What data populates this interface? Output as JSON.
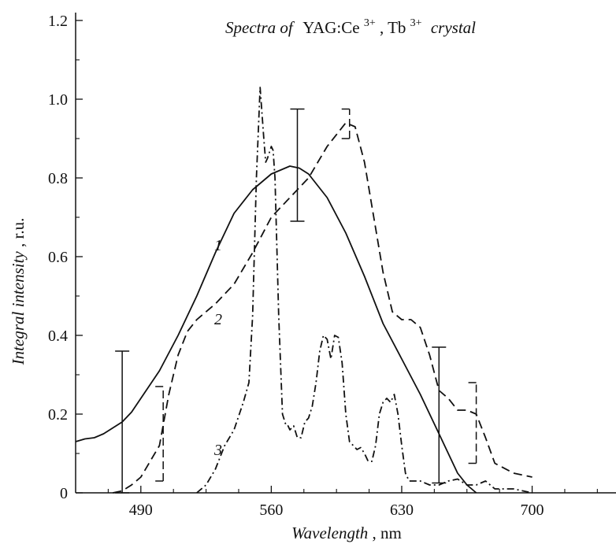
{
  "chart_data": {
    "type": "line",
    "title": {
      "italic_part": "Spectra of",
      "formula_parts": [
        {
          "text": "YAG:Ce",
          "sup": "3+"
        },
        {
          "text": ", Tb",
          "sup": "3+"
        }
      ],
      "suffix": "crystal"
    },
    "xlabel": {
      "main": "Wavelength",
      "unit": ", nm"
    },
    "ylabel": {
      "main": "Integral intensity",
      "unit": ", r.u."
    },
    "xlim": [
      455,
      745
    ],
    "ylim": [
      0,
      1.22
    ],
    "xticks": [
      490,
      560,
      630,
      700
    ],
    "xtick_labels": [
      "490",
      "560",
      "630",
      "700"
    ],
    "yticks": [
      0,
      0.2,
      0.4,
      0.6,
      0.8,
      1.0,
      1.2
    ],
    "ytick_labels": [
      "0",
      "0.2",
      "0.4",
      "0.6",
      "0.8",
      "1.0",
      "1.2"
    ],
    "minor_xticks": [
      472.5,
      507.5,
      525,
      542.5,
      577.5,
      595,
      612.5,
      647.5,
      665,
      682.5,
      717.5,
      735
    ],
    "grid": false,
    "series": [
      {
        "label": "1",
        "line_style": "solid",
        "color": "#111111",
        "x": [
          455,
          460,
          465,
          470,
          475,
          480,
          485,
          490,
          500,
          510,
          520,
          530,
          540,
          550,
          560,
          565,
          570,
          575,
          580,
          590,
          600,
          610,
          620,
          630,
          640,
          650,
          660,
          665,
          670
        ],
        "y": [
          0.13,
          0.137,
          0.14,
          0.15,
          0.165,
          0.18,
          0.205,
          0.24,
          0.31,
          0.4,
          0.5,
          0.61,
          0.71,
          0.77,
          0.81,
          0.82,
          0.83,
          0.825,
          0.81,
          0.75,
          0.66,
          0.55,
          0.43,
          0.34,
          0.25,
          0.15,
          0.05,
          0.02,
          0.0
        ],
        "error_bars": [
          {
            "x": 480,
            "y_low": 0.0,
            "y_high": 0.36
          },
          {
            "x": 574,
            "y_low": 0.69,
            "y_high": 0.975
          },
          {
            "x": 650,
            "y_low": 0.025,
            "y_high": 0.37
          }
        ]
      },
      {
        "label": "2",
        "line_style": "dashed",
        "color": "#111111",
        "x": [
          475,
          480,
          485,
          490,
          495,
          500,
          505,
          510,
          515,
          520,
          530,
          540,
          550,
          560,
          570,
          580,
          590,
          600,
          605,
          610,
          615,
          620,
          625,
          630,
          635,
          640,
          645,
          650,
          655,
          660,
          665,
          670,
          675,
          680,
          690,
          700
        ],
        "y": [
          0.0,
          0.005,
          0.02,
          0.04,
          0.08,
          0.12,
          0.25,
          0.35,
          0.41,
          0.44,
          0.48,
          0.53,
          0.61,
          0.7,
          0.75,
          0.8,
          0.88,
          0.94,
          0.93,
          0.84,
          0.7,
          0.56,
          0.46,
          0.44,
          0.44,
          0.42,
          0.35,
          0.26,
          0.24,
          0.21,
          0.21,
          0.2,
          0.14,
          0.075,
          0.05,
          0.04
        ],
        "error_bars": [
          {
            "x": 502,
            "y_low": 0.03,
            "y_high": 0.27
          },
          {
            "x": 602,
            "y_low": 0.9,
            "y_high": 0.975
          },
          {
            "x": 670,
            "y_low": 0.075,
            "y_high": 0.28
          }
        ]
      },
      {
        "label": "3",
        "line_style": "dashdot",
        "color": "#111111",
        "x": [
          520,
          525,
          530,
          535,
          540,
          545,
          548,
          550,
          552,
          554,
          556,
          557,
          558,
          560,
          561,
          562,
          564,
          566,
          568,
          569,
          570,
          572,
          574,
          576,
          578,
          580,
          582,
          584,
          586,
          588,
          590,
          592,
          594,
          596,
          598,
          600,
          602,
          604,
          606,
          608,
          610,
          612,
          614,
          616,
          618,
          620,
          622,
          624,
          626,
          628,
          630,
          632,
          634,
          636,
          640,
          645,
          650,
          655,
          660,
          665,
          670,
          675,
          680,
          690,
          700
        ],
        "y": [
          0.0,
          0.02,
          0.06,
          0.12,
          0.16,
          0.23,
          0.28,
          0.45,
          0.8,
          1.03,
          0.9,
          0.84,
          0.85,
          0.88,
          0.87,
          0.8,
          0.45,
          0.2,
          0.17,
          0.17,
          0.16,
          0.17,
          0.14,
          0.14,
          0.18,
          0.19,
          0.22,
          0.28,
          0.36,
          0.4,
          0.39,
          0.34,
          0.4,
          0.395,
          0.33,
          0.2,
          0.13,
          0.12,
          0.11,
          0.115,
          0.1,
          0.08,
          0.08,
          0.12,
          0.2,
          0.23,
          0.24,
          0.23,
          0.25,
          0.2,
          0.12,
          0.05,
          0.03,
          0.03,
          0.03,
          0.02,
          0.02,
          0.03,
          0.035,
          0.02,
          0.02,
          0.03,
          0.01,
          0.01,
          0.0
        ],
        "error_bars": []
      }
    ]
  }
}
